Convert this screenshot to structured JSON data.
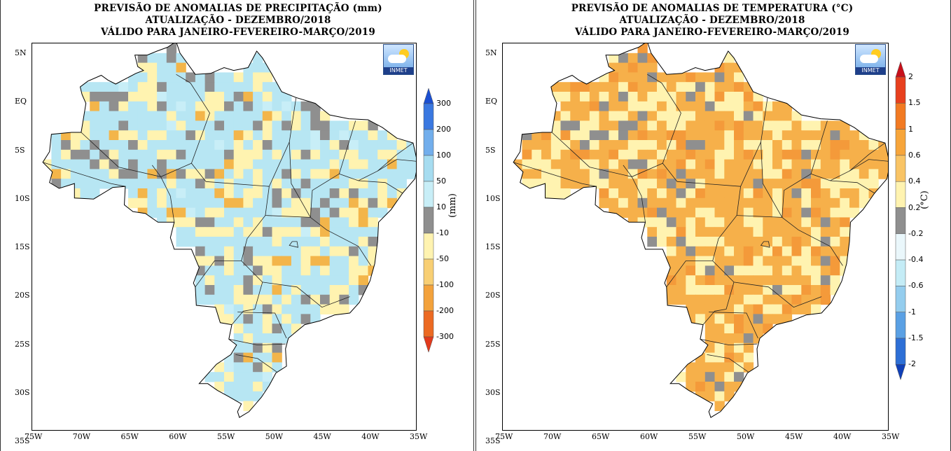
{
  "panels": [
    {
      "id": "precip",
      "title_lines": [
        "PREVISÃO DE ANOMALIAS DE PRECIPITAÇÃO (mm)",
        "ATUALIZAÇÃO - DEZEMBRO/2018",
        "VÁLIDO PARA JANEIRO-FEVEREIRO-MARÇO/2019"
      ],
      "colorbar_labels": [
        "300",
        "200",
        "100",
        "50",
        "10",
        "-10",
        "-50",
        "-100",
        "-200",
        "-300"
      ],
      "colorbar_colors": [
        "#1b4fd1",
        "#3a78e0",
        "#72aeec",
        "#a6dcf0",
        "#c8eef7",
        "#8f8f8f",
        "#fff3b0",
        "#f8cf74",
        "#f3a23c",
        "#ec6a22",
        "#e23a1c"
      ],
      "unit": "(mm)",
      "palette_weights": [
        [
          "#b7e6f3",
          50
        ],
        [
          "#fff3b0",
          28
        ],
        [
          "#8f8f8f",
          14
        ],
        [
          "#f3b54a",
          5
        ],
        [
          "#c8eef7",
          3
        ]
      ]
    },
    {
      "id": "temp",
      "title_lines": [
        "PREVISÃO DE ANOMALIAS DE TEMPERATURA (°C)",
        "ATUALIZAÇÃO - DEZEMBRO/2018",
        "VÁLIDO PARA JANEIRO-FEVEREIRO-MARÇO/2019"
      ],
      "colorbar_labels": [
        "2",
        "1.5",
        "1",
        "0.6",
        "0.4",
        "0.2",
        "-0.2",
        "-0.4",
        "-0.6",
        "-1",
        "-1.5",
        "-2"
      ],
      "colorbar_colors": [
        "#c8101a",
        "#e8401e",
        "#f27a22",
        "#f7a53a",
        "#f9c465",
        "#fff3b0",
        "#8f8f8f",
        "#eaf7fb",
        "#c4ecf6",
        "#94cdee",
        "#5aa0e4",
        "#2d6fd6",
        "#1040b8"
      ],
      "unit": "(°C)",
      "palette_weights": [
        [
          "#f6b04a",
          52
        ],
        [
          "#fff3b0",
          30
        ],
        [
          "#f49a3a",
          10
        ],
        [
          "#8f8f8f",
          8
        ]
      ]
    }
  ],
  "axes": {
    "lat_labels": [
      "5N",
      "EQ",
      "5S",
      "10S",
      "15S",
      "20S",
      "25S",
      "30S",
      "35S"
    ],
    "lon_labels": [
      "75W",
      "70W",
      "65W",
      "60W",
      "55W",
      "50W",
      "45W",
      "40W",
      "35W"
    ]
  },
  "logo_text": "INMET"
}
